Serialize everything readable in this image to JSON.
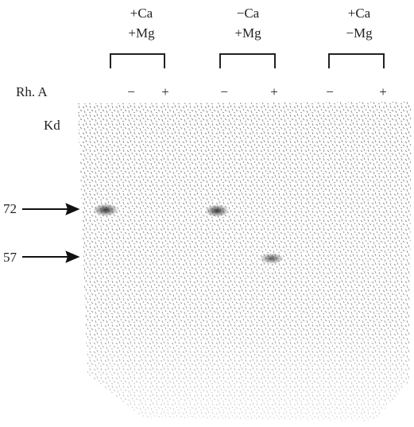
{
  "groups": [
    {
      "lines": [
        "+Ca",
        "+Mg"
      ]
    },
    {
      "lines": [
        "−Ca",
        "+Mg"
      ]
    },
    {
      "lines": [
        "+Ca",
        "−Mg"
      ]
    }
  ],
  "row_label": "Rh. A",
  "lanes": [
    "−",
    "+",
    "−",
    "+",
    "−",
    "+"
  ],
  "unit_label": "Kd",
  "markers": [
    "72",
    "57"
  ]
}
